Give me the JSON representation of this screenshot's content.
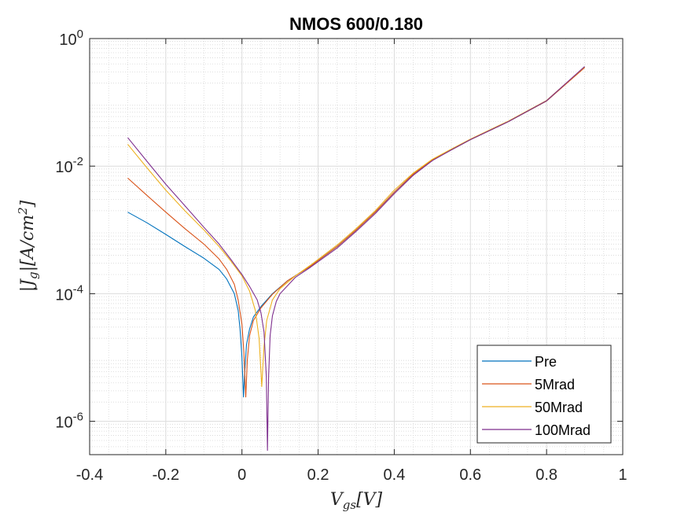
{
  "chart_data": {
    "type": "line",
    "title": "NMOS 600/0.180",
    "xlabel": "V_gs[V]",
    "ylabel": "|J_g|[A/cm^2]",
    "xlim": [
      -0.4,
      1.0
    ],
    "ylim": [
      3e-07,
      1.0
    ],
    "yscale": "log",
    "grid": true,
    "minor_grid": true,
    "legend_position": "bottom-right",
    "x_ticks": [
      -0.4,
      -0.2,
      0,
      0.2,
      0.4,
      0.6,
      0.8,
      1
    ],
    "x_tick_labels": [
      "-0.4",
      "-0.2",
      "0",
      "0.2",
      "0.4",
      "0.6",
      "0.8",
      "1"
    ],
    "y_ticks": [
      {
        "value": 1.0,
        "base": "10",
        "exp": "0"
      },
      {
        "value": 0.01,
        "base": "10",
        "exp": "-2"
      },
      {
        "value": 0.0001,
        "base": "10",
        "exp": "-4"
      },
      {
        "value": 1e-06,
        "base": "10",
        "exp": "-6"
      }
    ],
    "series": [
      {
        "name": "Pre",
        "color": "#0072BD",
        "points": [
          [
            -0.3,
            0.0019
          ],
          [
            -0.25,
            0.0013
          ],
          [
            -0.2,
            0.00085
          ],
          [
            -0.15,
            0.00055
          ],
          [
            -0.1,
            0.00036
          ],
          [
            -0.06,
            0.00024
          ],
          [
            -0.04,
            0.00017
          ],
          [
            -0.02,
            0.0001
          ],
          [
            -0.01,
            5.5e-05
          ],
          [
            -0.005,
            2.8e-05
          ],
          [
            0.0,
            1e-05
          ],
          [
            0.004,
            2.4e-06
          ],
          [
            0.008,
            7e-06
          ],
          [
            0.012,
            1.6e-05
          ],
          [
            0.02,
            2.8e-05
          ],
          [
            0.03,
            4.3e-05
          ],
          [
            0.05,
            6.3e-05
          ],
          [
            0.08,
            0.0001
          ],
          [
            0.12,
            0.00016
          ],
          [
            0.18,
            0.00027
          ],
          [
            0.25,
            0.00055
          ],
          [
            0.3,
            0.001
          ],
          [
            0.35,
            0.0019
          ],
          [
            0.4,
            0.0039
          ],
          [
            0.45,
            0.0075
          ],
          [
            0.5,
            0.0125
          ],
          [
            0.55,
            0.018
          ],
          [
            0.6,
            0.026
          ],
          [
            0.7,
            0.05
          ],
          [
            0.8,
            0.105
          ],
          [
            0.9,
            0.355
          ]
        ]
      },
      {
        "name": "5Mrad",
        "color": "#D95319",
        "points": [
          [
            -0.3,
            0.0065
          ],
          [
            -0.25,
            0.0035
          ],
          [
            -0.2,
            0.0019
          ],
          [
            -0.15,
            0.00105
          ],
          [
            -0.1,
            0.0006
          ],
          [
            -0.06,
            0.00035
          ],
          [
            -0.04,
            0.00024
          ],
          [
            -0.02,
            0.00014
          ],
          [
            -0.01,
            8e-05
          ],
          [
            0.0,
            3.3e-05
          ],
          [
            0.005,
            1.2e-05
          ],
          [
            0.01,
            2.4e-06
          ],
          [
            0.014,
            9e-06
          ],
          [
            0.02,
            2.2e-05
          ],
          [
            0.03,
            3.8e-05
          ],
          [
            0.05,
            6e-05
          ],
          [
            0.08,
            9.8e-05
          ],
          [
            0.12,
            0.00016
          ],
          [
            0.18,
            0.00027
          ],
          [
            0.25,
            0.00055
          ],
          [
            0.3,
            0.001
          ],
          [
            0.35,
            0.0019
          ],
          [
            0.4,
            0.0039
          ],
          [
            0.45,
            0.0075
          ],
          [
            0.5,
            0.0125
          ],
          [
            0.55,
            0.018
          ],
          [
            0.6,
            0.026
          ],
          [
            0.7,
            0.05
          ],
          [
            0.8,
            0.105
          ],
          [
            0.9,
            0.35
          ]
        ]
      },
      {
        "name": "50Mrad",
        "color": "#EDB120",
        "points": [
          [
            -0.3,
            0.022
          ],
          [
            -0.25,
            0.0095
          ],
          [
            -0.2,
            0.0042
          ],
          [
            -0.15,
            0.002
          ],
          [
            -0.1,
            0.001
          ],
          [
            -0.06,
            0.00055
          ],
          [
            -0.03,
            0.00033
          ],
          [
            0.0,
            0.00019
          ],
          [
            0.02,
            0.00011
          ],
          [
            0.035,
            5.5e-05
          ],
          [
            0.045,
            2e-05
          ],
          [
            0.052,
            3.5e-06
          ],
          [
            0.058,
            1.5e-05
          ],
          [
            0.065,
            3.8e-05
          ],
          [
            0.08,
            8e-05
          ],
          [
            0.1,
            0.00012
          ],
          [
            0.14,
            0.00019
          ],
          [
            0.18,
            0.00028
          ],
          [
            0.25,
            0.00058
          ],
          [
            0.3,
            0.00105
          ],
          [
            0.35,
            0.002
          ],
          [
            0.4,
            0.0042
          ],
          [
            0.45,
            0.0078
          ],
          [
            0.5,
            0.0128
          ],
          [
            0.55,
            0.0185
          ],
          [
            0.6,
            0.0265
          ],
          [
            0.7,
            0.051
          ],
          [
            0.8,
            0.107
          ],
          [
            0.9,
            0.36
          ]
        ]
      },
      {
        "name": "100Mrad",
        "color": "#7E2F8E",
        "points": [
          [
            -0.3,
            0.028
          ],
          [
            -0.25,
            0.012
          ],
          [
            -0.2,
            0.0052
          ],
          [
            -0.15,
            0.0024
          ],
          [
            -0.1,
            0.0011
          ],
          [
            -0.06,
            0.0006
          ],
          [
            -0.03,
            0.00035
          ],
          [
            0.0,
            0.0002
          ],
          [
            0.02,
            0.00013
          ],
          [
            0.04,
            8e-05
          ],
          [
            0.05,
            5e-05
          ],
          [
            0.058,
            2.5e-05
          ],
          [
            0.064,
            5e-06
          ],
          [
            0.067,
            3.5e-07
          ],
          [
            0.07,
            5e-06
          ],
          [
            0.074,
            2.2e-05
          ],
          [
            0.08,
            4.5e-05
          ],
          [
            0.09,
            7.5e-05
          ],
          [
            0.1,
            0.0001
          ],
          [
            0.14,
            0.00018
          ],
          [
            0.18,
            0.00026
          ],
          [
            0.25,
            0.00052
          ],
          [
            0.3,
            0.00095
          ],
          [
            0.35,
            0.0018
          ],
          [
            0.4,
            0.0037
          ],
          [
            0.45,
            0.0072
          ],
          [
            0.5,
            0.0122
          ],
          [
            0.55,
            0.018
          ],
          [
            0.6,
            0.026
          ],
          [
            0.7,
            0.05
          ],
          [
            0.8,
            0.106
          ],
          [
            0.9,
            0.365
          ]
        ]
      }
    ]
  }
}
